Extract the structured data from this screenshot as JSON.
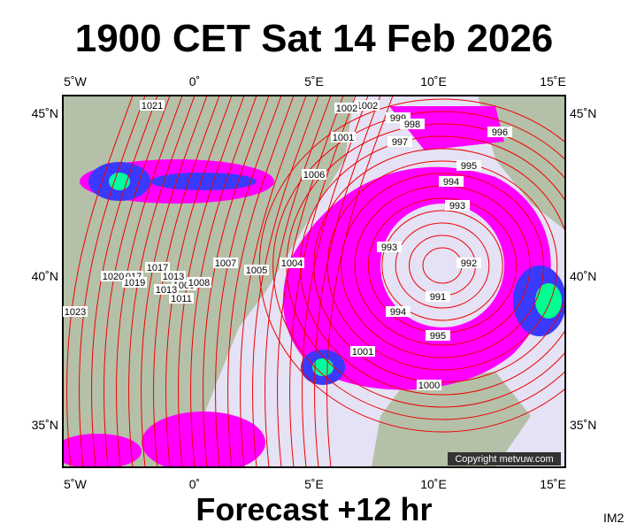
{
  "header": {
    "title": "1900 CET Sat 14 Feb 2026"
  },
  "map": {
    "lon_labels": [
      "5˚W",
      "0˚",
      "5˚E",
      "10˚E",
      "15˚E"
    ],
    "lat_labels": [
      "45˚N",
      "40˚N",
      "35˚N"
    ],
    "isobar_labels": [
      "1021",
      "1017",
      "1013",
      "1009",
      "1005",
      "1002",
      "1001",
      "999",
      "998",
      "997",
      "996",
      "995",
      "994",
      "993",
      "993",
      "992",
      "991",
      "994",
      "995",
      "1000",
      "1001",
      "1002",
      "1004",
      "1006",
      "1007",
      "1008",
      "1011",
      "1013",
      "1017",
      "1019",
      "1020",
      "1023"
    ],
    "copyright": "Copyright metvuw.com"
  },
  "footer": {
    "forecast": "Forecast +12 hr",
    "code": "IM2"
  }
}
